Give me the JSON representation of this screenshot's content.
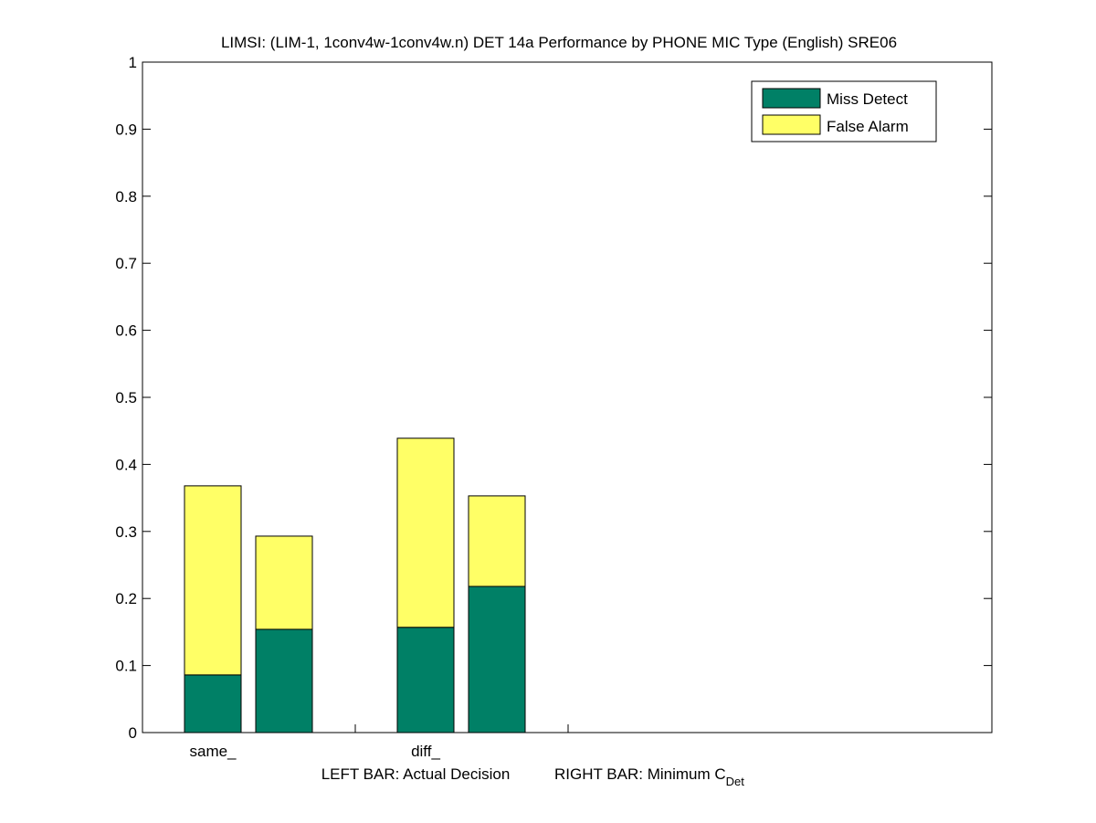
{
  "chart_data": {
    "type": "bar",
    "stacked": true,
    "title": "LIMSI: (LIM-1, 1conv4w-1conv4w.n) DET 14a Performance by PHONE MIC Type (English) SRE06",
    "categories": [
      "same_",
      "diff_"
    ],
    "bars_per_category": [
      "Actual Decision",
      "Minimum C_Det"
    ],
    "series": [
      {
        "name": "Miss Detect",
        "color": "#008066",
        "values": [
          [
            0.086,
            0.154
          ],
          [
            0.157,
            0.218
          ]
        ]
      },
      {
        "name": "False Alarm",
        "color": "#ffff66",
        "values": [
          [
            0.282,
            0.139
          ],
          [
            0.282,
            0.135
          ]
        ]
      }
    ],
    "ylim": [
      0,
      1
    ],
    "yticks": [
      "0",
      "0.1",
      "0.2",
      "0.3",
      "0.4",
      "0.5",
      "0.6",
      "0.7",
      "0.8",
      "0.9",
      "1"
    ],
    "xlabel": {
      "left": "LEFT BAR: Actual Decision",
      "right": "RIGHT BAR: Minimum C",
      "right_subscript": "Det"
    },
    "legend": "top-right"
  }
}
